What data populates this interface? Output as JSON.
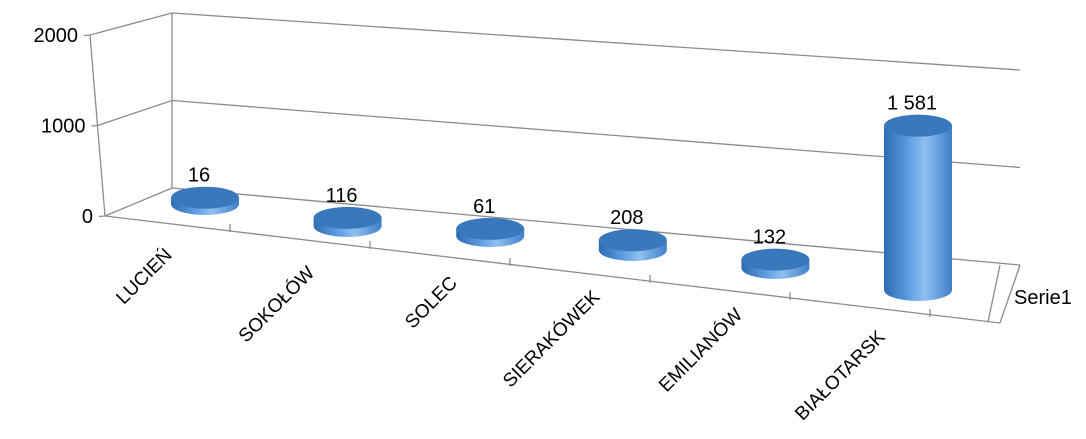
{
  "chart_data": {
    "type": "bar",
    "style": "3d-cylinder",
    "categories": [
      "LUCIEŃ",
      "SOKOŁÓW",
      "SOLEC",
      "SIERAKÓWEK",
      "EMILIANÓW",
      "BIAŁOTARSK"
    ],
    "series": [
      {
        "name": "Serie1",
        "values": [
          16,
          116,
          61,
          208,
          132,
          1581
        ],
        "labels": [
          "16",
          "116",
          "61",
          "208",
          "132",
          "1 581"
        ]
      }
    ],
    "y_ticks": [
      "0",
      "1000",
      "2000"
    ],
    "ylim": [
      0,
      2000
    ],
    "grid": true,
    "colors": {
      "bar": "#4f8fd6",
      "bar_light": "#9cc8f4",
      "bar_dark": "#2e6bb0",
      "top": "#3a78bd",
      "grid": "#8c8c8c"
    }
  }
}
